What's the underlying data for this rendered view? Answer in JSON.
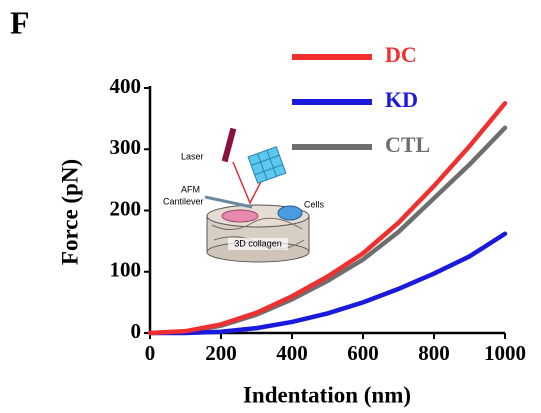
{
  "chart_data": {
    "type": "line",
    "panel_label": "F",
    "xlabel": "Indentation (nm)",
    "ylabel": "Force (pN)",
    "x": [
      0,
      100,
      200,
      300,
      400,
      500,
      600,
      700,
      800,
      900,
      1000
    ],
    "series": [
      {
        "name": "DC",
        "color": "#f03030",
        "values": [
          0,
          3,
          14,
          33,
          60,
          92,
          130,
          180,
          240,
          305,
          375
        ]
      },
      {
        "name": "KD",
        "color": "#1a1adc",
        "values": [
          0,
          0,
          2,
          8,
          18,
          32,
          50,
          72,
          97,
          125,
          162
        ]
      },
      {
        "name": "CTL",
        "color": "#6e6e6e",
        "values": [
          0,
          2,
          12,
          30,
          55,
          85,
          120,
          165,
          220,
          275,
          335
        ]
      }
    ],
    "xlim": [
      0,
      1000
    ],
    "xticks": [
      0,
      200,
      400,
      600,
      800,
      1000
    ],
    "ylim": [
      0,
      400
    ],
    "yticks": [
      0,
      100,
      200,
      300,
      400
    ],
    "annotations": [
      "Laser",
      "AFM",
      "Cantilever",
      "Cells",
      "3D collagen"
    ]
  }
}
